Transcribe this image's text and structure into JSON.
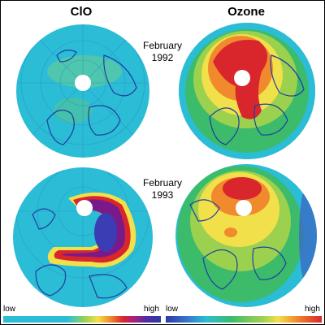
{
  "columns": {
    "left_title": "ClO",
    "right_title": "Ozone"
  },
  "dates": {
    "top": {
      "month": "February",
      "year": "1992"
    },
    "bottom": {
      "month": "February",
      "year": "1993"
    }
  },
  "legend": {
    "left": {
      "low": "low",
      "high": "high"
    },
    "right": {
      "low": "low",
      "high": "high"
    }
  },
  "colors": {
    "ocean": "#2bbcd6",
    "land_outline": "#1f3fa0",
    "clo_high": "#7a1a8a",
    "ozone_high": "#d8262c",
    "pole": "#ffffff"
  },
  "globes": [
    {
      "name": "clo-1992",
      "variable": "ClO",
      "year": "1992"
    },
    {
      "name": "ozone-1992",
      "variable": "Ozone",
      "year": "1992"
    },
    {
      "name": "clo-1993",
      "variable": "ClO",
      "year": "1993"
    },
    {
      "name": "ozone-1993",
      "variable": "Ozone",
      "year": "1993"
    }
  ]
}
